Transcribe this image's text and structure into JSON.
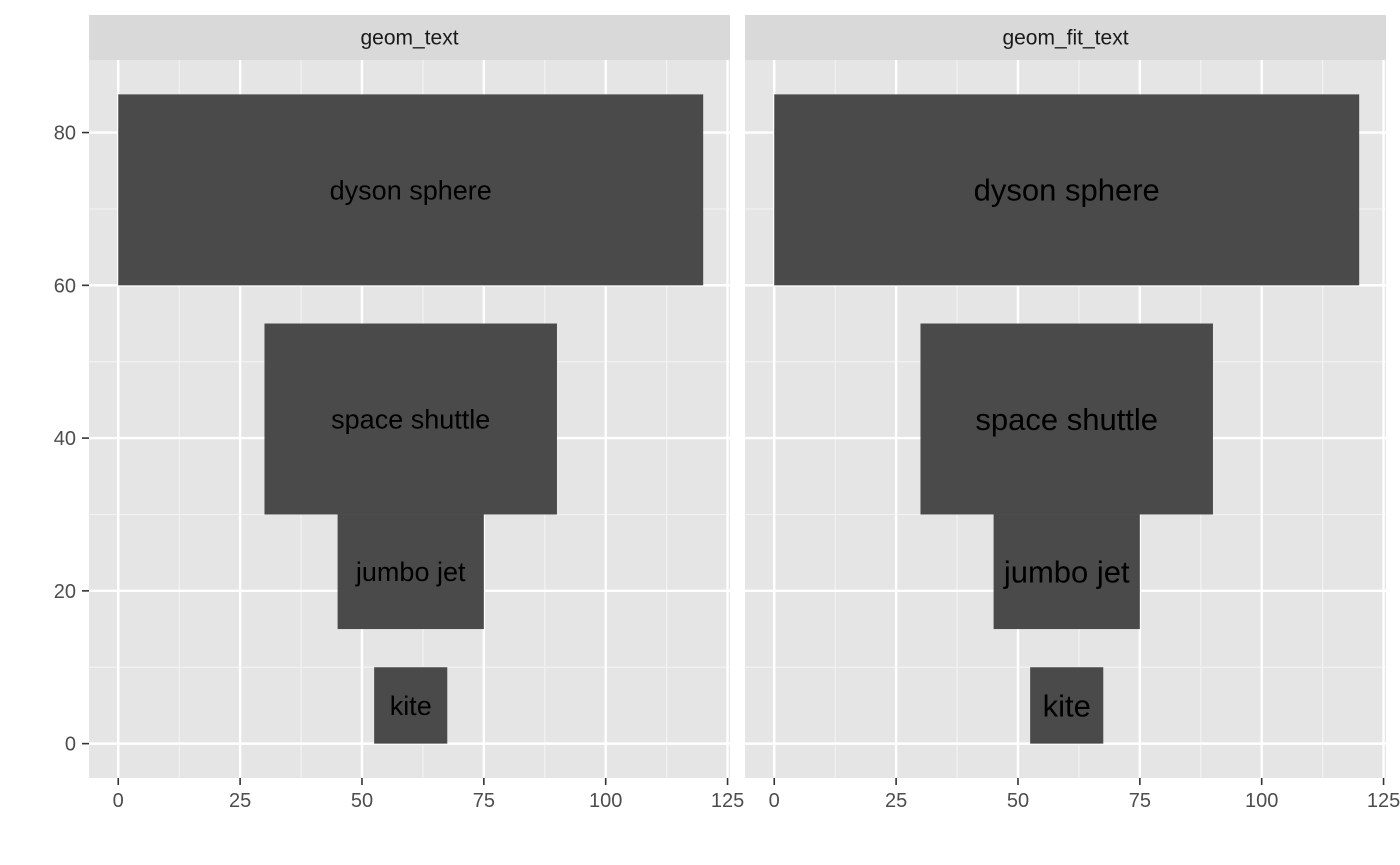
{
  "chart_data": {
    "type": "bar",
    "facets": [
      {
        "strip": "geom_text"
      },
      {
        "strip": "geom_fit_text"
      }
    ],
    "rectangles": [
      {
        "label": "dyson sphere",
        "xmin": 0,
        "xmax": 120,
        "ymin": 60,
        "ymax": 85
      },
      {
        "label": "space shuttle",
        "xmin": 30,
        "xmax": 90,
        "ymin": 30,
        "ymax": 55
      },
      {
        "label": "jumbo jet",
        "xmin": 45,
        "xmax": 75,
        "ymin": 15,
        "ymax": 30
      },
      {
        "label": "kite",
        "xmin": 52.5,
        "xmax": 67.5,
        "ymin": 0,
        "ymax": 10
      }
    ],
    "xlim": [
      -6,
      125.5
    ],
    "ylim": [
      -4.5,
      89.5
    ],
    "x_ticks": [
      0,
      25,
      50,
      75,
      100,
      125
    ],
    "x_tick_labels": [
      "0",
      "25",
      "50",
      "75",
      "100",
      "125"
    ],
    "y_ticks": [
      0,
      20,
      40,
      60,
      80
    ],
    "y_tick_labels": [
      "0",
      "20",
      "40",
      "60",
      "80"
    ],
    "xlabel": "",
    "ylabel": "",
    "grid": true,
    "colors": {
      "panel_bg": "#e5e5e5",
      "strip_bg": "#d9d9d9",
      "bar_fill": "#4a4a4a",
      "grid_major": "#ffffff",
      "grid_minor": "#f2f2f2"
    }
  }
}
